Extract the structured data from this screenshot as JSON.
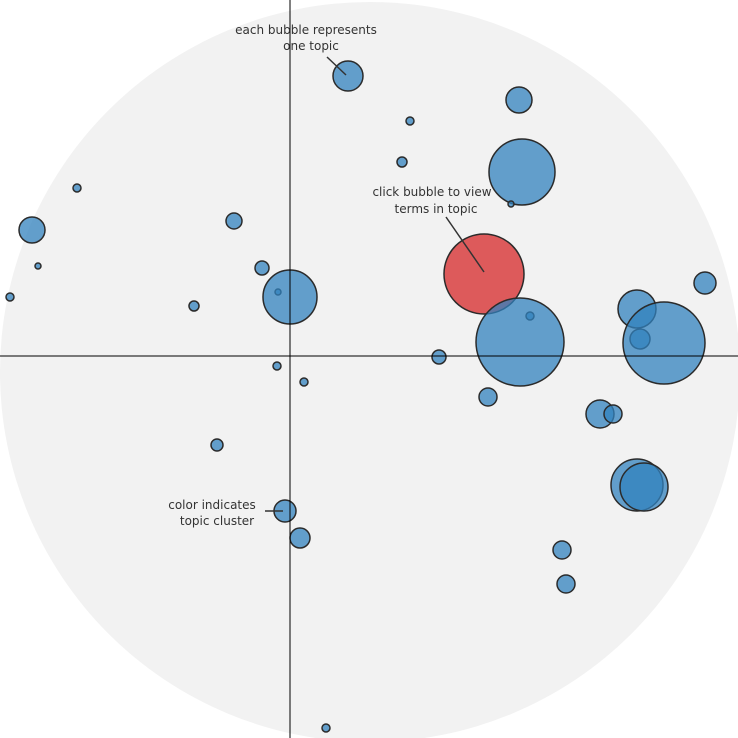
{
  "colors": {
    "backdrop": "#f2f2f2",
    "bubble_default": "#3182bd",
    "bubble_selected": "#d62728",
    "bubble_stroke": "#2b2b2b",
    "axis": "#000000",
    "annotation_text": "#333333"
  },
  "annotations": {
    "bubble_topic": [
      "each bubble represents",
      "one topic"
    ],
    "click_view": [
      "click bubble to view",
      "terms in topic"
    ],
    "color_cluster": [
      "color indicates",
      "topic cluster"
    ]
  },
  "chart_data": {
    "type": "scatter",
    "title": "",
    "xlabel": "",
    "ylabel": "",
    "grid": false,
    "axes_cross_at": [
      0,
      0
    ],
    "xlim": [
      -290,
      448
    ],
    "ylim": [
      -382,
      356
    ],
    "series": [
      {
        "points": [
          {
            "x": 58,
            "y": 280,
            "size": 15,
            "cluster": 1
          },
          {
            "x": 229,
            "y": 256,
            "size": 13,
            "cluster": 1
          },
          {
            "x": 120,
            "y": 235,
            "size": 4,
            "cluster": 1
          },
          {
            "x": 112,
            "y": 194,
            "size": 5,
            "cluster": 1
          },
          {
            "x": -213,
            "y": 168,
            "size": 4,
            "cluster": 1
          },
          {
            "x": 232,
            "y": 184,
            "size": 33,
            "cluster": 1
          },
          {
            "x": 221,
            "y": 152,
            "size": 3,
            "cluster": 1
          },
          {
            "x": -56,
            "y": 135,
            "size": 8,
            "cluster": 1
          },
          {
            "x": -258,
            "y": 126,
            "size": 13,
            "cluster": 1
          },
          {
            "x": -252,
            "y": 90,
            "size": 3,
            "cluster": 1
          },
          {
            "x": -28,
            "y": 88,
            "size": 7,
            "cluster": 1
          },
          {
            "x": 194,
            "y": 82,
            "size": 40,
            "cluster": 2
          },
          {
            "x": 415,
            "y": 73,
            "size": 11,
            "cluster": 1
          },
          {
            "x": -12,
            "y": 64,
            "size": 3,
            "cluster": 1
          },
          {
            "x": 0,
            "y": 59,
            "size": 27,
            "cluster": 1
          },
          {
            "x": -280,
            "y": 59,
            "size": 4,
            "cluster": 1
          },
          {
            "x": -96,
            "y": 50,
            "size": 5,
            "cluster": 1
          },
          {
            "x": 347,
            "y": 47,
            "size": 19,
            "cluster": 1
          },
          {
            "x": 240,
            "y": 40,
            "size": 4,
            "cluster": 1
          },
          {
            "x": 230,
            "y": 14,
            "size": 44,
            "cluster": 1
          },
          {
            "x": 350,
            "y": 17,
            "size": 10,
            "cluster": 1
          },
          {
            "x": 374,
            "y": 13,
            "size": 41,
            "cluster": 1
          },
          {
            "x": 149,
            "y": -1,
            "size": 7,
            "cluster": 1
          },
          {
            "x": -13,
            "y": -10,
            "size": 4,
            "cluster": 1
          },
          {
            "x": 14,
            "y": -26,
            "size": 4,
            "cluster": 1
          },
          {
            "x": 198,
            "y": -41,
            "size": 9,
            "cluster": 1
          },
          {
            "x": 310,
            "y": -58,
            "size": 14,
            "cluster": 1
          },
          {
            "x": 323,
            "y": -58,
            "size": 9,
            "cluster": 1
          },
          {
            "x": -73,
            "y": -89,
            "size": 6,
            "cluster": 1
          },
          {
            "x": 347,
            "y": -129,
            "size": 26,
            "cluster": 1
          },
          {
            "x": 354,
            "y": -131,
            "size": 24,
            "cluster": 3
          },
          {
            "x": -5,
            "y": -155,
            "size": 11,
            "cluster": 1
          },
          {
            "x": 10,
            "y": -182,
            "size": 10,
            "cluster": 1
          },
          {
            "x": 272,
            "y": -194,
            "size": 9,
            "cluster": 1
          },
          {
            "x": 276,
            "y": -228,
            "size": 9,
            "cluster": 1
          },
          {
            "x": 36,
            "y": -372,
            "size": 4,
            "cluster": 1
          }
        ],
        "selected_index": 11
      }
    ]
  }
}
